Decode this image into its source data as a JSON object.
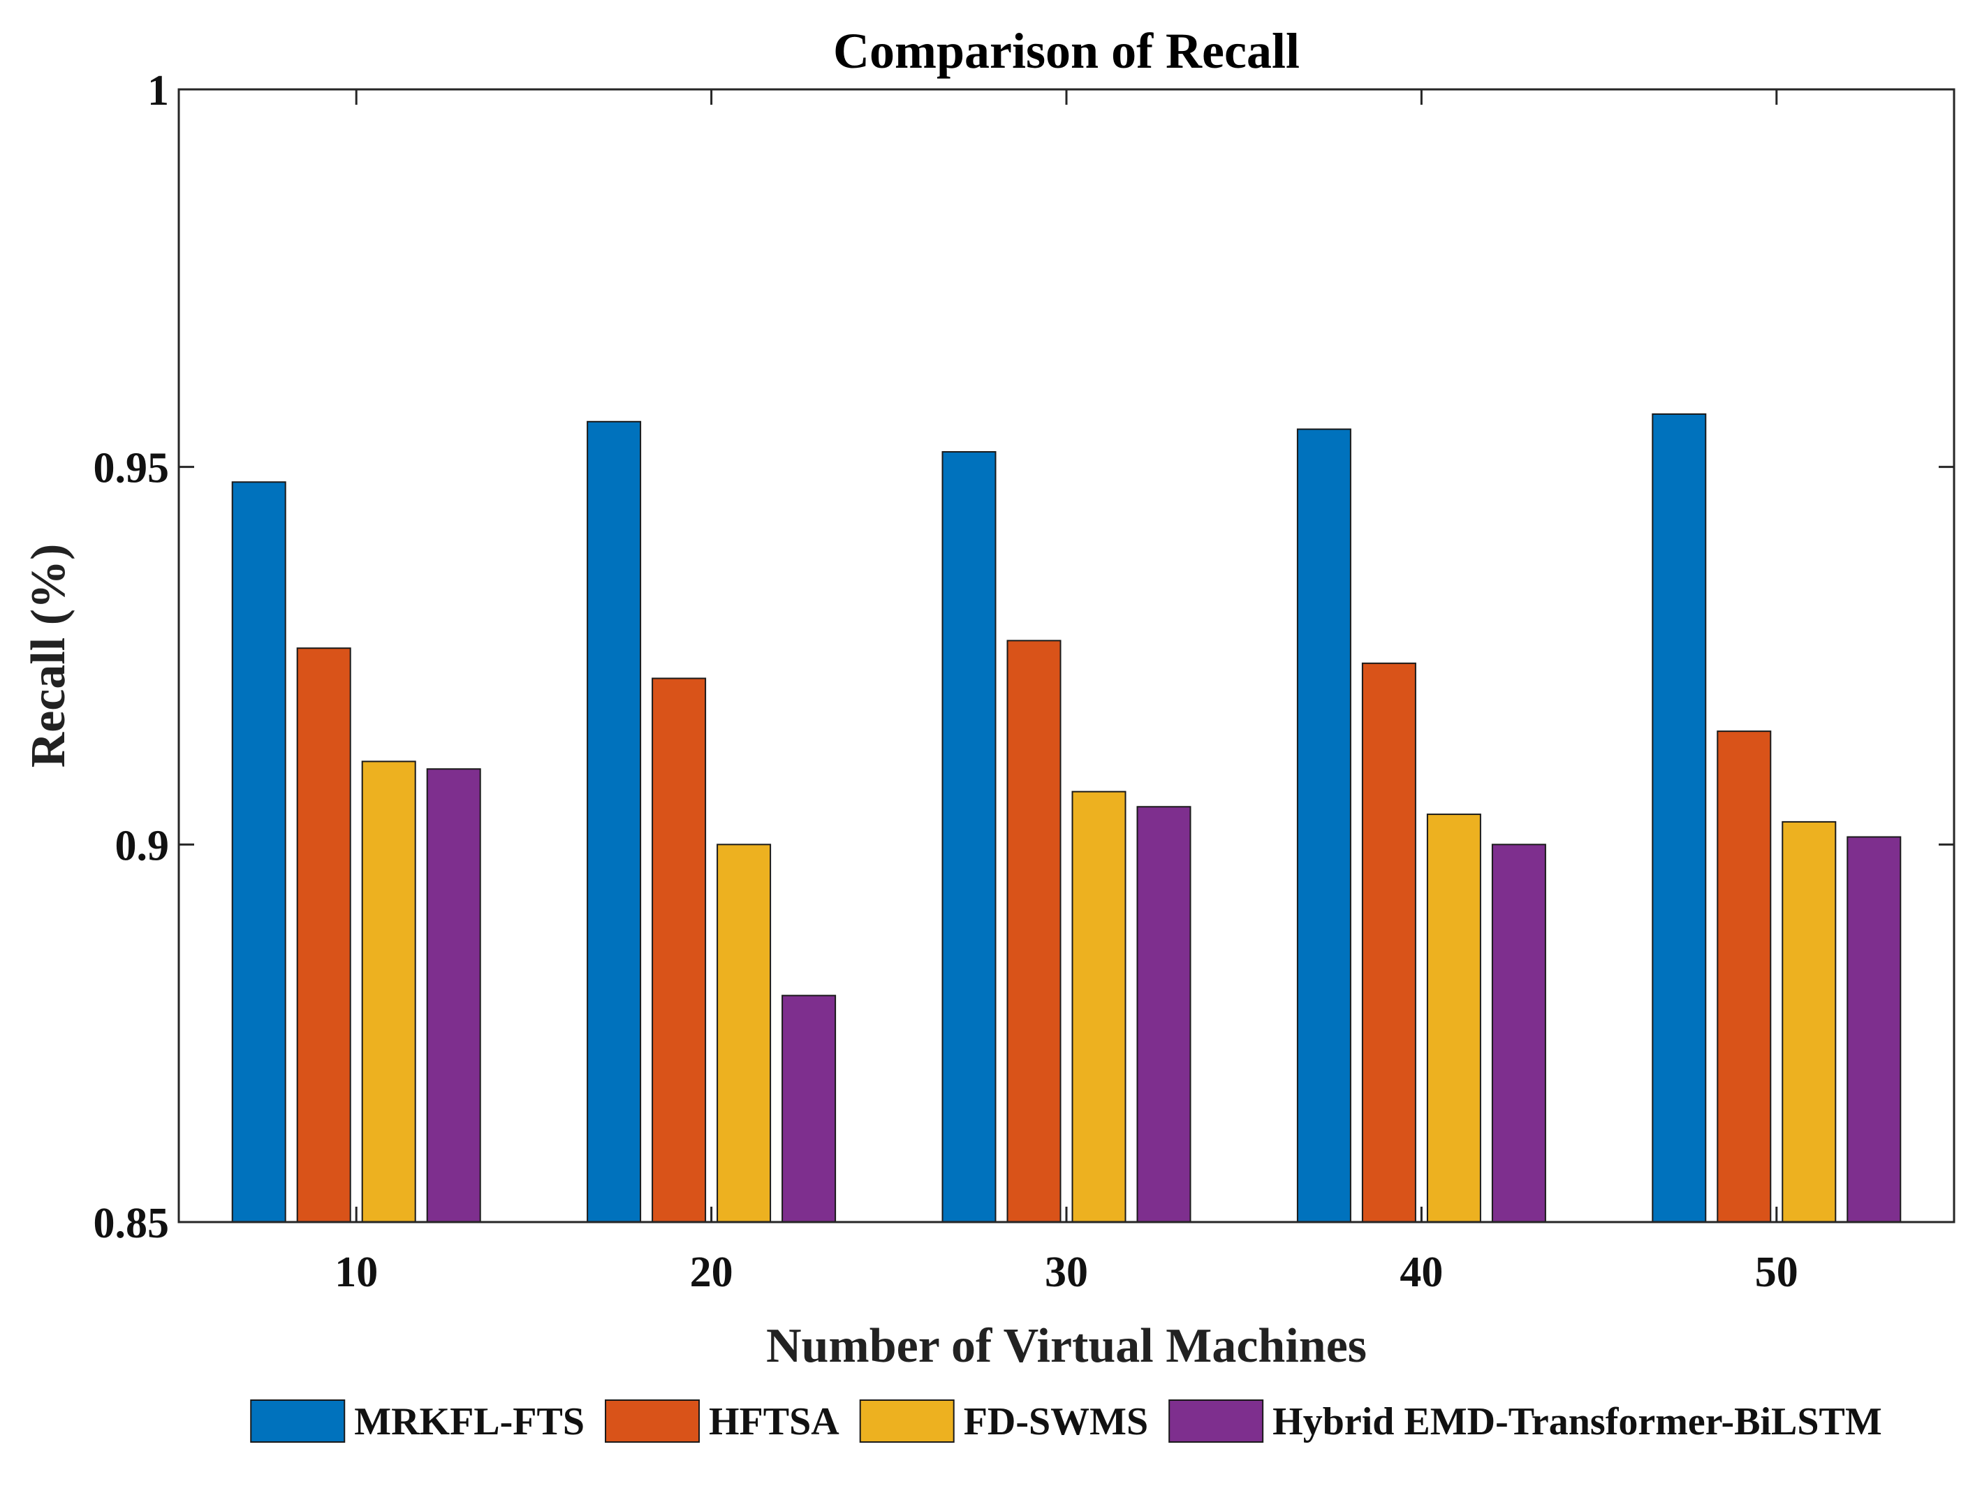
{
  "chart_data": {
    "type": "bar",
    "title": "Comparison of Recall",
    "xlabel": "Number of Virtual Machines",
    "ylabel": "Recall (%)",
    "categories": [
      "10",
      "20",
      "30",
      "40",
      "50"
    ],
    "ylim": [
      0.85,
      1
    ],
    "yticks": [
      0.85,
      0.9,
      0.95,
      1
    ],
    "ytick_labels": [
      "0.85",
      "0.9",
      "0.95",
      "1"
    ],
    "legend_position": "bottom",
    "series": [
      {
        "name": "MRKFL-FTS",
        "color": "#0072BD",
        "values": [
          0.948,
          0.956,
          0.952,
          0.955,
          0.957
        ]
      },
      {
        "name": "HFTSA",
        "color": "#D95319",
        "values": [
          0.926,
          0.922,
          0.927,
          0.924,
          0.915
        ]
      },
      {
        "name": "FD-SWMS",
        "color": "#EDB120",
        "values": [
          0.911,
          0.9,
          0.907,
          0.904,
          0.903
        ]
      },
      {
        "name": "Hybrid EMD-Transformer-BiLSTM",
        "color": "#7E2F8E",
        "values": [
          0.91,
          0.88,
          0.905,
          0.9,
          0.901
        ]
      }
    ]
  }
}
